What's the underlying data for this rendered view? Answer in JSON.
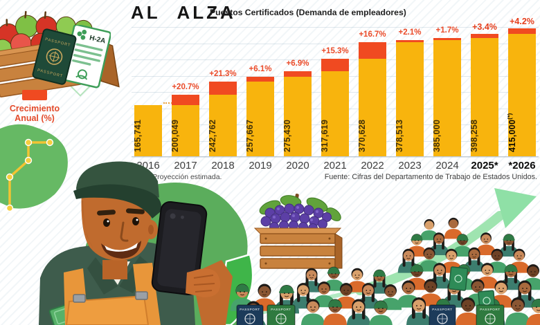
{
  "header": {
    "title": "AL ALZA",
    "subtitle": "Puestos Certificados (Demanda de empleadores)"
  },
  "legend": {
    "label": "Crecimiento Anual (%)"
  },
  "chart_data": {
    "type": "bar",
    "title": "AL ALZA",
    "subtitle": "Puestos Certificados (Demanda de empleadores)",
    "categories": [
      "2016",
      "2017",
      "2018",
      "2019",
      "2020",
      "2021",
      "2022",
      "2023",
      "2024",
      "2025*",
      "*2026"
    ],
    "values": [
      165741,
      200049,
      242762,
      257667,
      275430,
      317619,
      370628,
      378513,
      385000,
      398258,
      415000
    ],
    "value_labels": [
      "165,741",
      "200,049",
      "242,762",
      "257,667",
      "275,430",
      "317,619",
      "370,628",
      "378,513",
      "385,000",
      "398,258",
      "415,000"
    ],
    "growth_labels": [
      "",
      "+20.7%",
      "+21.3%",
      "+6.1%",
      "+6.9%",
      "+15.3%",
      "+16.7%",
      "+2.1%",
      "+1.7%",
      "+3.4%",
      "+4.2%"
    ],
    "last_value_superscript": "(*)",
    "bold_from_index": 9,
    "ylim": [
      0,
      430000
    ],
    "grid": true,
    "legend_label": "Crecimiento Anual (%)",
    "legend_position": "left",
    "xlabel": "",
    "ylabel": ""
  },
  "footnote": "*Proyección estimada.",
  "source": "Fuente: Cifras del Departamento de Trabajo de Estados Unidos.",
  "illustrations": {
    "passport_top_label": "PASSPORT",
    "passport_bottom_label": "PASSPORT",
    "h2a_label": "H-2A",
    "crowd_passport_label": "PASSPORT"
  },
  "colors": {
    "bar_yellow": "#F8B40D",
    "growth_orange": "#F04A21",
    "pct_text": "#EA4A28",
    "value_text": "#43320A",
    "arrow_green": "#9FE4B0",
    "map_green": "#5BAD5C",
    "bright_green": "#3FB549"
  }
}
